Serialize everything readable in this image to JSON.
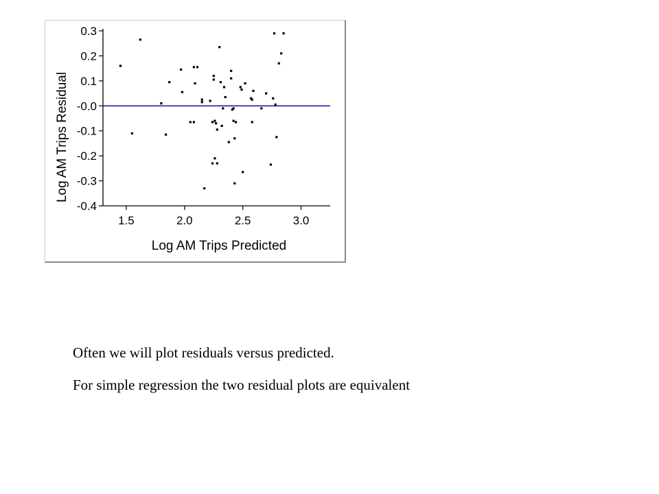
{
  "chart_data": {
    "type": "scatter",
    "xlabel": "Log AM Trips Predicted",
    "ylabel": "Log AM Trips Residual",
    "xlim": [
      1.3,
      3.25
    ],
    "ylim": [
      -0.4,
      0.3
    ],
    "x_ticks": [
      {
        "value": 1.5,
        "label": "1.5"
      },
      {
        "value": 2.0,
        "label": "2.0"
      },
      {
        "value": 2.5,
        "label": "2.5"
      },
      {
        "value": 3.0,
        "label": "3.0"
      }
    ],
    "y_ticks": [
      {
        "value": 0.3,
        "label": "0.3"
      },
      {
        "value": 0.2,
        "label": "0.2"
      },
      {
        "value": 0.1,
        "label": "0.1"
      },
      {
        "value": 0.0,
        "label": "-0.0"
      },
      {
        "value": -0.1,
        "label": "-0.1"
      },
      {
        "value": -0.2,
        "label": "-0.2"
      },
      {
        "value": -0.3,
        "label": "-0.3"
      },
      {
        "value": -0.4,
        "label": "-0.4"
      }
    ],
    "reference_line": {
      "y": 0.0,
      "color": "#1f1fa8"
    },
    "grid": false,
    "marker_color": "#000000",
    "points": [
      {
        "x": 1.45,
        "y": 0.16
      },
      {
        "x": 1.62,
        "y": 0.265
      },
      {
        "x": 1.55,
        "y": -0.11
      },
      {
        "x": 1.8,
        "y": 0.01
      },
      {
        "x": 1.84,
        "y": -0.115
      },
      {
        "x": 1.87,
        "y": 0.095
      },
      {
        "x": 1.97,
        "y": 0.145
      },
      {
        "x": 1.98,
        "y": 0.055
      },
      {
        "x": 2.05,
        "y": -0.065
      },
      {
        "x": 2.08,
        "y": -0.065
      },
      {
        "x": 2.08,
        "y": 0.155
      },
      {
        "x": 2.09,
        "y": 0.09
      },
      {
        "x": 2.11,
        "y": 0.155
      },
      {
        "x": 2.15,
        "y": 0.025
      },
      {
        "x": 2.15,
        "y": 0.015
      },
      {
        "x": 2.17,
        "y": -0.33
      },
      {
        "x": 2.22,
        "y": 0.02
      },
      {
        "x": 2.24,
        "y": -0.065
      },
      {
        "x": 2.24,
        "y": -0.23
      },
      {
        "x": 2.25,
        "y": 0.12
      },
      {
        "x": 2.25,
        "y": 0.105
      },
      {
        "x": 2.26,
        "y": -0.06
      },
      {
        "x": 2.26,
        "y": -0.21
      },
      {
        "x": 2.27,
        "y": -0.07
      },
      {
        "x": 2.28,
        "y": -0.095
      },
      {
        "x": 2.28,
        "y": -0.23
      },
      {
        "x": 2.3,
        "y": 0.235
      },
      {
        "x": 2.31,
        "y": 0.095
      },
      {
        "x": 2.32,
        "y": -0.08
      },
      {
        "x": 2.33,
        "y": -0.01
      },
      {
        "x": 2.34,
        "y": 0.075
      },
      {
        "x": 2.35,
        "y": 0.035
      },
      {
        "x": 2.38,
        "y": -0.145
      },
      {
        "x": 2.4,
        "y": 0.14
      },
      {
        "x": 2.4,
        "y": 0.11
      },
      {
        "x": 2.41,
        "y": -0.015
      },
      {
        "x": 2.42,
        "y": -0.01
      },
      {
        "x": 2.42,
        "y": -0.06
      },
      {
        "x": 2.43,
        "y": -0.13
      },
      {
        "x": 2.43,
        "y": -0.31
      },
      {
        "x": 2.44,
        "y": -0.065
      },
      {
        "x": 2.48,
        "y": 0.075
      },
      {
        "x": 2.49,
        "y": 0.065
      },
      {
        "x": 2.5,
        "y": -0.265
      },
      {
        "x": 2.52,
        "y": 0.09
      },
      {
        "x": 2.57,
        "y": 0.03
      },
      {
        "x": 2.58,
        "y": -0.065
      },
      {
        "x": 2.58,
        "y": 0.025
      },
      {
        "x": 2.59,
        "y": 0.06
      },
      {
        "x": 2.66,
        "y": -0.01
      },
      {
        "x": 2.7,
        "y": 0.05
      },
      {
        "x": 2.74,
        "y": -0.235
      },
      {
        "x": 2.76,
        "y": 0.03
      },
      {
        "x": 2.77,
        "y": 0.29
      },
      {
        "x": 2.78,
        "y": 0.005
      },
      {
        "x": 2.79,
        "y": -0.125
      },
      {
        "x": 2.81,
        "y": 0.17
      },
      {
        "x": 2.83,
        "y": 0.21
      },
      {
        "x": 2.85,
        "y": 0.29
      }
    ]
  },
  "captions": {
    "line1": "Often we will plot residuals versus predicted.",
    "line2": "For simple regression the two residual plots are equivalent"
  }
}
